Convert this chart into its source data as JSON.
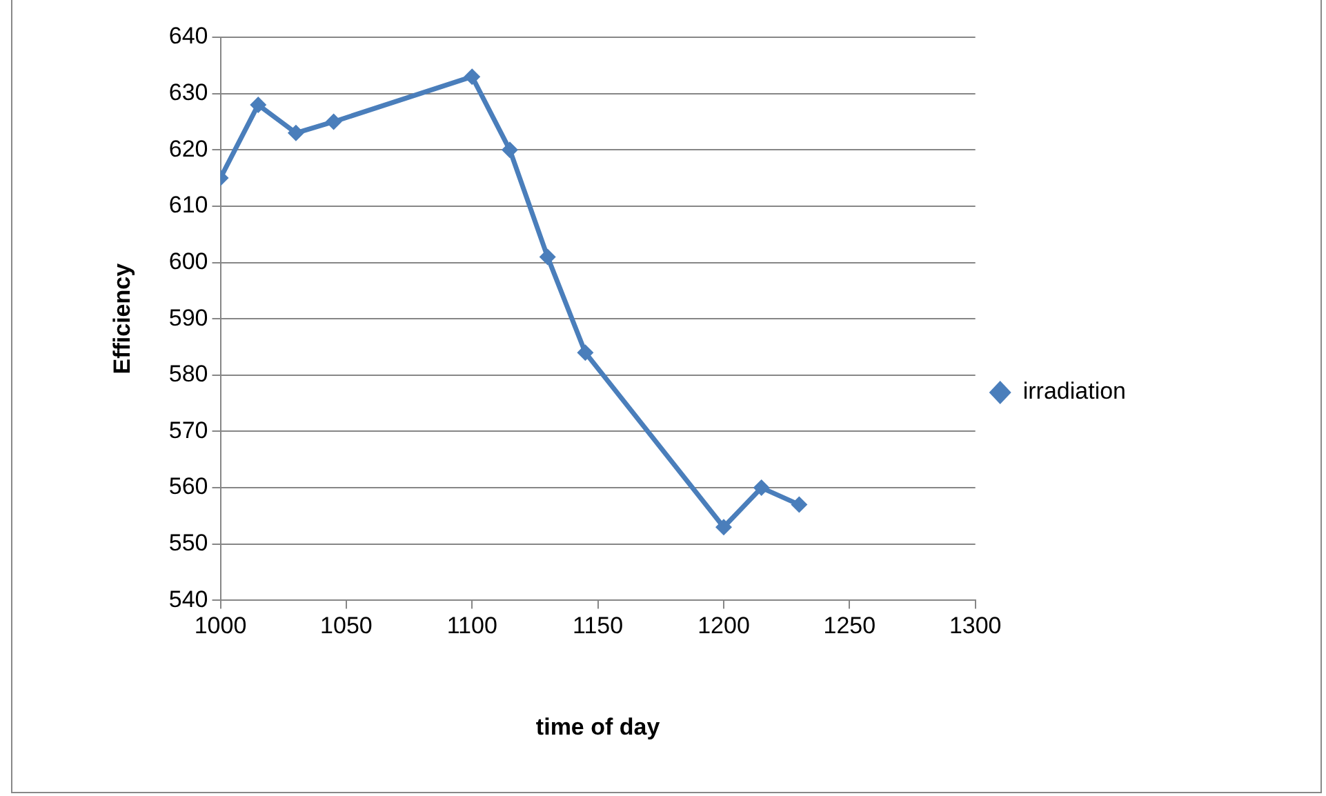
{
  "chart_data": {
    "type": "line",
    "xlabel": "time of day",
    "ylabel": "Efficiency",
    "x": [
      1000,
      1015,
      1030,
      1045,
      1100,
      1115,
      1130,
      1145,
      1200,
      1215,
      1230
    ],
    "series": [
      {
        "name": "irradiation",
        "color": "#4a7ebb",
        "values": [
          615,
          628,
          623,
          625,
          633,
          620,
          601,
          584,
          553,
          560,
          557
        ]
      }
    ],
    "xlim": [
      1000,
      1300
    ],
    "xticks": [
      1000,
      1050,
      1100,
      1150,
      1200,
      1250,
      1300
    ],
    "ylim": [
      540,
      640
    ],
    "yticks": [
      540,
      550,
      560,
      570,
      580,
      590,
      600,
      610,
      620,
      630,
      640
    ],
    "grid": "y",
    "legend": "right",
    "marker": "diamond",
    "line_style": "solid"
  }
}
